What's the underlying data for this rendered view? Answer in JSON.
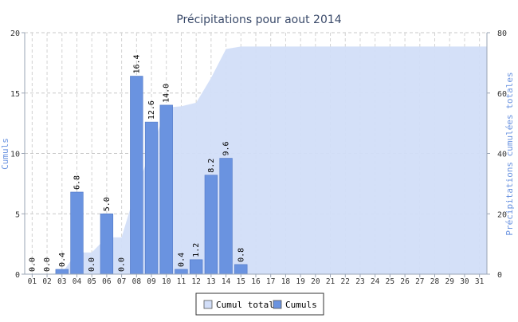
{
  "chart_data": {
    "type": "bar",
    "title": "Précipitations pour aout 2014",
    "ylabel": "Cumuls",
    "ylabel_right": "Précipitations cumulées totales",
    "categories": [
      "01",
      "02",
      "03",
      "04",
      "05",
      "06",
      "07",
      "08",
      "09",
      "10",
      "11",
      "12",
      "13",
      "14",
      "15",
      "16",
      "17",
      "18",
      "19",
      "20",
      "21",
      "22",
      "23",
      "24",
      "25",
      "26",
      "27",
      "28",
      "29",
      "30",
      "31"
    ],
    "series": [
      {
        "name": "Cumuls",
        "type": "bar",
        "axis": "left",
        "color": "#6a93e0",
        "values": [
          0.0,
          0.0,
          0.4,
          6.8,
          0.0,
          5.0,
          0.0,
          16.4,
          12.6,
          14.0,
          0.4,
          1.2,
          8.2,
          9.6,
          0.8,
          null,
          null,
          null,
          null,
          null,
          null,
          null,
          null,
          null,
          null,
          null,
          null,
          null,
          null,
          null,
          null
        ],
        "labels": [
          "0.0",
          "0.0",
          "0.4",
          "6.8",
          "0.0",
          "5.0",
          "0.0",
          "16.4",
          "12.6",
          "14.0",
          "0.4",
          "1.2",
          "8.2",
          "9.6",
          "0.8"
        ]
      },
      {
        "name": "Cumul total",
        "type": "area",
        "axis": "right",
        "color": "#d2def8",
        "values": [
          0.0,
          0.0,
          0.4,
          7.2,
          7.2,
          12.2,
          12.2,
          28.6,
          41.2,
          55.2,
          55.6,
          56.8,
          65.0,
          74.6,
          75.4,
          75.4,
          75.4,
          75.4,
          75.4,
          75.4,
          75.4,
          75.4,
          75.4,
          75.4,
          75.4,
          75.4,
          75.4,
          75.4,
          75.4,
          75.4,
          75.4
        ]
      }
    ],
    "ylim": [
      0,
      20
    ],
    "ylim_right": [
      0,
      80
    ],
    "yticks": [
      "0",
      "5",
      "10",
      "15",
      "20"
    ],
    "yticks_right": [
      "0",
      "20",
      "40",
      "60",
      "80"
    ],
    "grid": true,
    "legend_position": "bottom-center"
  }
}
